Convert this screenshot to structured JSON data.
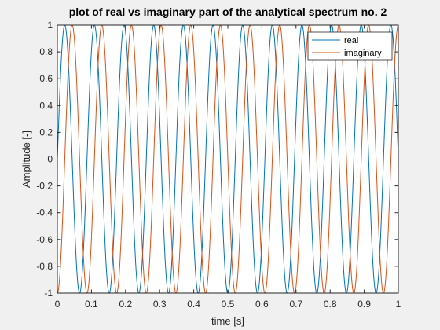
{
  "chart_data": {
    "type": "line",
    "title": "plot of real vs imaginary part of the analytical spectrum no. 2",
    "xlabel": "time [s]",
    "ylabel": "Amplitude [-]",
    "xlim": [
      0,
      1
    ],
    "ylim": [
      -1,
      1
    ],
    "x_ticks": [
      "0",
      "0.1",
      "0.2",
      "0.3",
      "0.4",
      "0.5",
      "0.6",
      "0.7",
      "0.8",
      "0.9",
      "1"
    ],
    "y_ticks": [
      "-1",
      "-0.8",
      "-0.6",
      "-0.4",
      "-0.2",
      "0",
      "0.2",
      "0.4",
      "0.6",
      "0.8",
      "1"
    ],
    "grid": false,
    "legend_position": "top-right",
    "frequency_hz": 11.5,
    "series": [
      {
        "name": "real",
        "function": "sin(2*pi*11.5*t)",
        "color": "#0072BD"
      },
      {
        "name": "imaginary",
        "function": "-cos(2*pi*11.5*t)",
        "color": "#D95319"
      }
    ]
  }
}
